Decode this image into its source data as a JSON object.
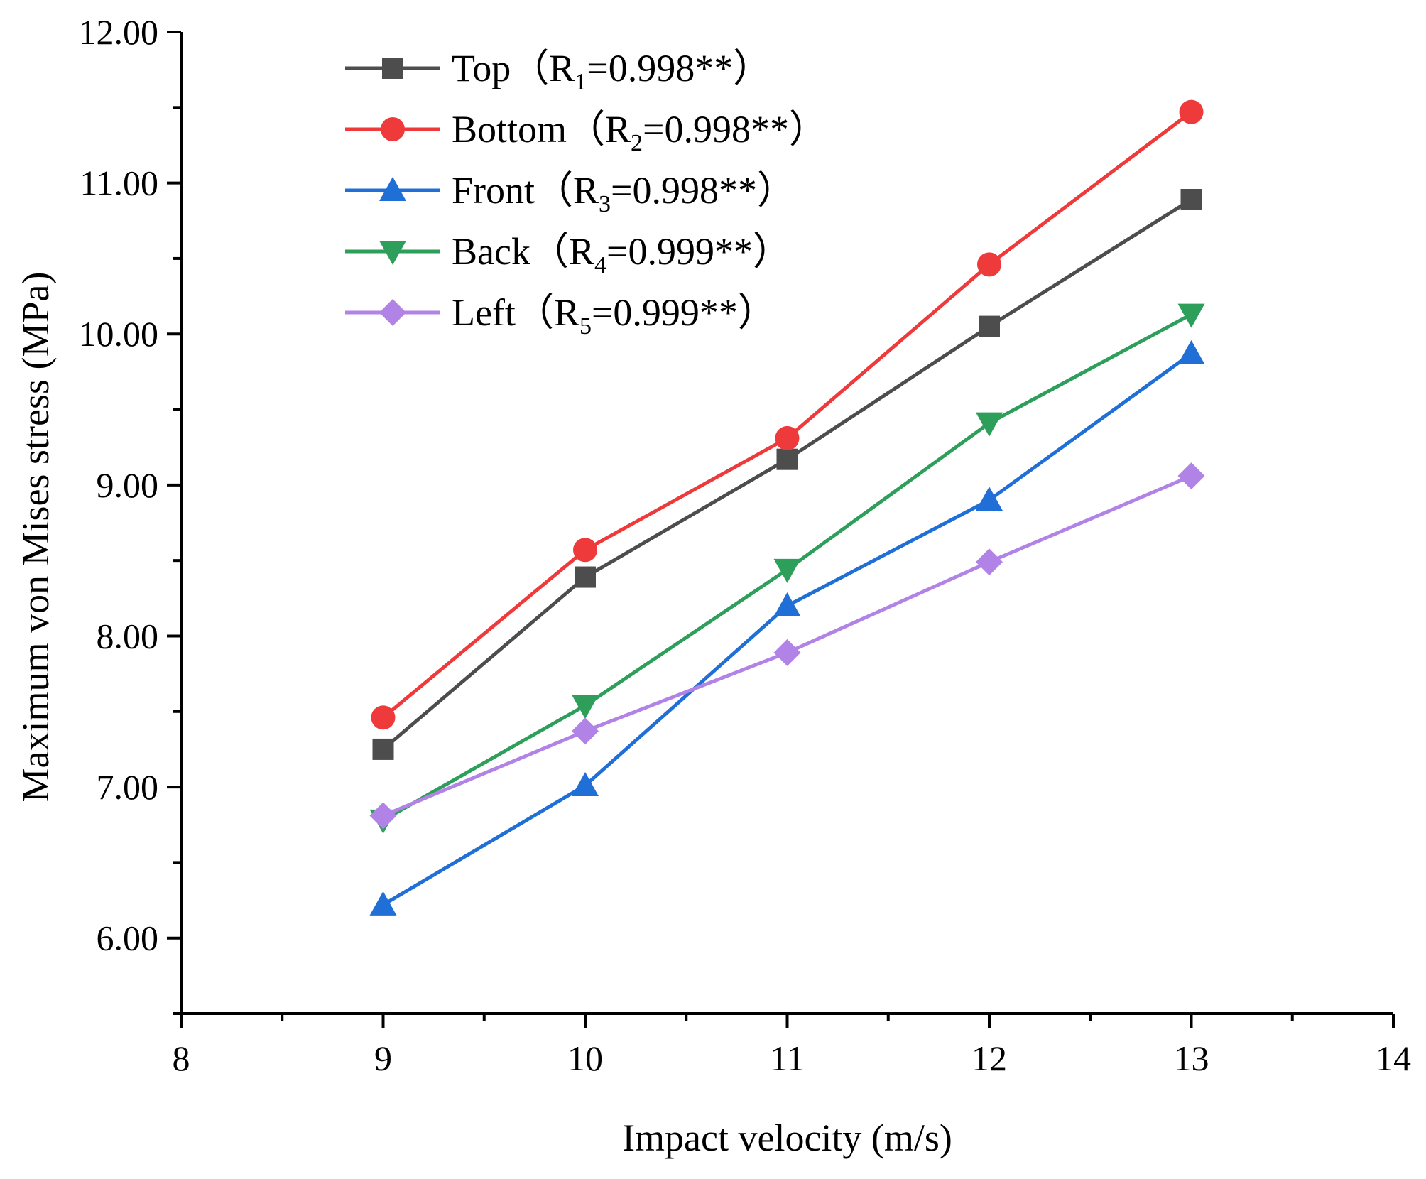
{
  "chart_data": {
    "type": "line",
    "title": "",
    "xlabel": "Impact velocity (m/s)",
    "ylabel": "Maximum von Mises stress (MPa)",
    "xlim": [
      8,
      14
    ],
    "ylim": [
      5.5,
      12.0
    ],
    "xticks": [
      8,
      9,
      10,
      11,
      12,
      13,
      14
    ],
    "xtick_labels": [
      "8",
      "9",
      "10",
      "11",
      "12",
      "13",
      "14"
    ],
    "yticks": [
      6,
      7,
      8,
      9,
      10,
      11,
      12
    ],
    "ytick_labels": [
      "6.00",
      "7.00",
      "8.00",
      "9.00",
      "10.00",
      "11.00",
      "12.00"
    ],
    "grid": false,
    "legend_position": "top-left",
    "x": [
      9,
      10,
      11,
      12,
      13
    ],
    "series": [
      {
        "name": "Top",
        "legend_pre": "Top（R",
        "legend_sub": "1",
        "legend_post": "=0.998**）",
        "color": "#4d4d4d",
        "marker": "square",
        "values": [
          7.25,
          8.39,
          9.17,
          10.05,
          10.89
        ]
      },
      {
        "name": "Bottom",
        "legend_pre": "Bottom（R",
        "legend_sub": "2",
        "legend_post": "=0.998**）",
        "color": "#ee3a3a",
        "marker": "circle",
        "values": [
          7.46,
          8.57,
          9.31,
          10.46,
          11.47
        ]
      },
      {
        "name": "Front",
        "legend_pre": "Front（R",
        "legend_sub": "3",
        "legend_post": "=0.998**）",
        "color": "#1f6fd6",
        "marker": "triangle-up",
        "values": [
          6.22,
          7.01,
          8.2,
          8.9,
          9.87
        ]
      },
      {
        "name": "Back",
        "legend_pre": "Back（R",
        "legend_sub": "4",
        "legend_post": "=0.999**）",
        "color": "#2e9e5b",
        "marker": "triangle-down",
        "values": [
          6.78,
          7.54,
          8.44,
          9.41,
          10.13
        ]
      },
      {
        "name": "Left",
        "legend_pre": "Left（R",
        "legend_sub": "5",
        "legend_post": "=0.999**）",
        "color": "#b283e6",
        "marker": "diamond",
        "values": [
          6.81,
          7.37,
          7.89,
          8.49,
          9.06
        ]
      }
    ]
  }
}
